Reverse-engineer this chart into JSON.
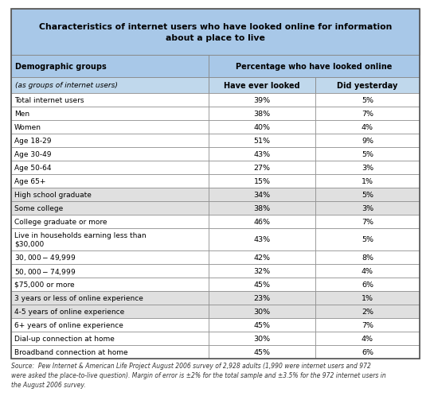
{
  "title": "Characteristics of internet users who have looked online for information\nabout a place to live",
  "col_header_left": "Demographic groups",
  "col_header_right": "Percentage who have looked online",
  "col_sub_left": "(as groups of internet users)",
  "col_sub_mid": "Have ever looked",
  "col_sub_right": "Did yesterday",
  "rows": [
    [
      "Total internet users",
      "39%",
      "5%"
    ],
    [
      "Men",
      "38%",
      "7%"
    ],
    [
      "Women",
      "40%",
      "4%"
    ],
    [
      "Age 18-29",
      "51%",
      "9%"
    ],
    [
      "Age 30-49",
      "43%",
      "5%"
    ],
    [
      "Age 50-64",
      "27%",
      "3%"
    ],
    [
      "Age 65+",
      "15%",
      "1%"
    ],
    [
      "High school graduate",
      "34%",
      "5%"
    ],
    [
      "Some college",
      "38%",
      "3%"
    ],
    [
      "College graduate or more",
      "46%",
      "7%"
    ],
    [
      "Live in households earning less than\n$30,000",
      "43%",
      "5%"
    ],
    [
      "$30,000-$49,999",
      "42%",
      "8%"
    ],
    [
      "$50,000-$74,999",
      "32%",
      "4%"
    ],
    [
      "$75,000 or more",
      "45%",
      "6%"
    ],
    [
      "3 years or less of online experience",
      "23%",
      "1%"
    ],
    [
      "4-5 years of online experience",
      "30%",
      "2%"
    ],
    [
      "6+ years of online experience",
      "45%",
      "7%"
    ],
    [
      "Dial-up connection at home",
      "30%",
      "4%"
    ],
    [
      "Broadband connection at home",
      "45%",
      "6%"
    ]
  ],
  "row_shading": [
    "#ffffff",
    "#ffffff",
    "#ffffff",
    "#ffffff",
    "#ffffff",
    "#ffffff",
    "#ffffff",
    "#e0e0e0",
    "#e0e0e0",
    "#ffffff",
    "#ffffff",
    "#ffffff",
    "#ffffff",
    "#ffffff",
    "#e0e0e0",
    "#e0e0e0",
    "#ffffff",
    "#ffffff",
    "#ffffff"
  ],
  "header_bg": "#a8c8e8",
  "subheader_bg": "#c0d8ec",
  "border_color": "#888888",
  "text_color": "#000000",
  "source_text": "Source:  Pew Internet & American Life Project August 2006 survey of 2,928 adults (1,990 were internet users and 972\nwere asked the place-to-live question). Margin of error is ±2% for the total sample and ±3.5% for the 972 internet users in\nthe August 2006 survey."
}
